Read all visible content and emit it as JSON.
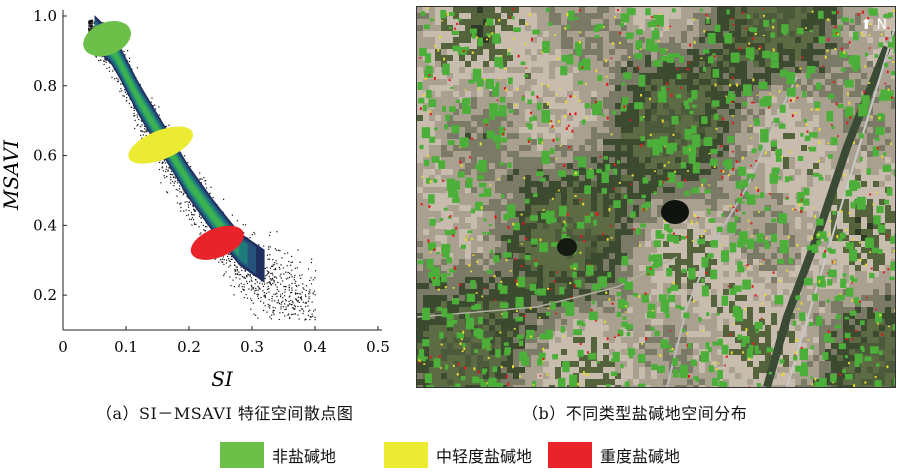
{
  "chart_data": {
    "type": "scatter",
    "xlabel": "SI",
    "ylabel": "MSAVI",
    "xlim": [
      0,
      0.5
    ],
    "ylim": [
      0.1,
      1.0
    ],
    "x_ticks": [
      "0",
      "0.1",
      "0.2",
      "0.3",
      "0.4",
      "0.5"
    ],
    "y_ticks": [
      "0.2",
      "0.4",
      "0.6",
      "0.8",
      "1.0"
    ],
    "density_ridge": {
      "x": [
        0.04,
        0.08,
        0.12,
        0.16,
        0.2,
        0.24,
        0.28,
        0.32,
        0.36,
        0.4
      ],
      "y": [
        0.97,
        0.9,
        0.76,
        0.64,
        0.52,
        0.42,
        0.33,
        0.28,
        0.23,
        0.2
      ]
    },
    "classes": [
      {
        "name": "非盐碱地",
        "color": "#6cc04a",
        "x_range": [
          0.04,
          0.1
        ],
        "y_range": [
          0.9,
          0.97
        ]
      },
      {
        "name": "中轻度盐碱地",
        "color": "#ebeb33",
        "x_range": [
          0.11,
          0.2
        ],
        "y_range": [
          0.6,
          0.66
        ]
      },
      {
        "name": "重度盐碱地",
        "color": "#e8242a",
        "x_range": [
          0.21,
          0.28
        ],
        "y_range": [
          0.32,
          0.38
        ]
      }
    ]
  },
  "captions": {
    "a": "（a）SI－MSAVI 特征空间散点图",
    "b": "（b）不同类型盐碱地空间分布"
  },
  "legend": [
    {
      "label": "非盐碱地",
      "color": "#6cc04a"
    },
    {
      "label": "中轻度盐碱地",
      "color": "#ebeb33"
    },
    {
      "label": "重度盐碱地",
      "color": "#e8242a"
    }
  ],
  "map": {
    "north_label": "N",
    "pixel_colors": {
      "non_saline": "#4caf3a",
      "moderate": "#e6d930",
      "severe": "#e01a1a"
    }
  }
}
